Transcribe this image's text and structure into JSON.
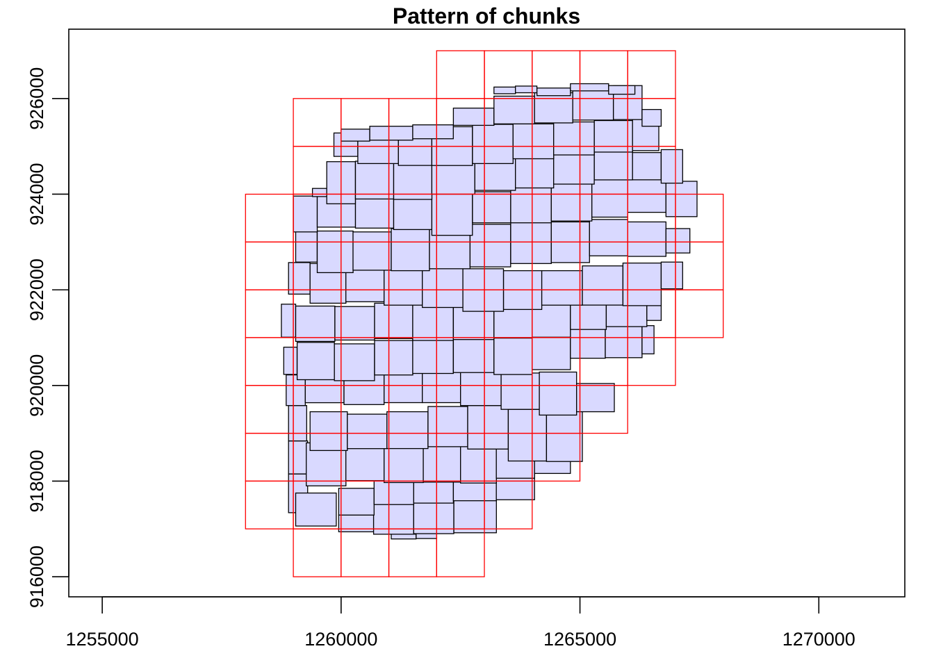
{
  "chart_data": {
    "type": "rect-overlay",
    "title": "Pattern of chunks",
    "xlabel": "",
    "ylabel": "",
    "xlim": [
      1254300,
      1271800
    ],
    "ylim": [
      915580,
      927450
    ],
    "x_ticks": [
      1255000,
      1260000,
      1265000,
      1270000
    ],
    "y_ticks": [
      916000,
      918000,
      920000,
      922000,
      924000,
      926000
    ],
    "grid": false,
    "series": [
      {
        "kind": "tiles",
        "fill": "#d9d9ff",
        "stroke": "#000000",
        "rects": [
          [
            1261050,
            1261570,
            916790,
            916890
          ],
          [
            1261570,
            1262000,
            916800,
            916910
          ],
          [
            1259950,
            1260680,
            916940,
            917290
          ],
          [
            1260680,
            1261520,
            916890,
            917520
          ],
          [
            1261520,
            1262360,
            916900,
            917550
          ],
          [
            1262360,
            1263250,
            916920,
            917610
          ],
          [
            1258900,
            1259300,
            917340,
            918150
          ],
          [
            1259050,
            1259900,
            917060,
            917750
          ],
          [
            1259950,
            1260690,
            917290,
            917850
          ],
          [
            1260690,
            1261520,
            917510,
            918200
          ],
          [
            1261520,
            1262350,
            917540,
            918280
          ],
          [
            1262350,
            1263250,
            917590,
            918470
          ],
          [
            1263250,
            1264050,
            917610,
            918320
          ],
          [
            1258900,
            1259300,
            918150,
            918840
          ],
          [
            1259270,
            1260100,
            917900,
            918800
          ],
          [
            1260100,
            1260900,
            918010,
            918800
          ],
          [
            1260900,
            1261720,
            917970,
            918780
          ],
          [
            1261720,
            1262500,
            917980,
            918790
          ],
          [
            1262500,
            1263250,
            917960,
            918830
          ],
          [
            1263250,
            1264050,
            918060,
            918920
          ],
          [
            1264050,
            1264800,
            918160,
            918850
          ],
          [
            1258900,
            1259280,
            918840,
            919580
          ],
          [
            1259350,
            1260130,
            918640,
            919450
          ],
          [
            1260130,
            1260960,
            918680,
            919400
          ],
          [
            1260960,
            1261820,
            918680,
            919450
          ],
          [
            1261820,
            1262650,
            918720,
            919560
          ],
          [
            1262650,
            1263500,
            918670,
            919580
          ],
          [
            1263500,
            1264300,
            918420,
            919500
          ],
          [
            1264300,
            1265050,
            918410,
            919550
          ],
          [
            1258850,
            1259250,
            919580,
            920220
          ],
          [
            1259250,
            1260060,
            919640,
            920420
          ],
          [
            1260060,
            1260900,
            919600,
            920370
          ],
          [
            1260900,
            1261700,
            919640,
            920490
          ],
          [
            1261700,
            1262500,
            919640,
            920400
          ],
          [
            1262500,
            1263350,
            919580,
            920320
          ],
          [
            1263350,
            1264150,
            919500,
            920260
          ],
          [
            1264150,
            1264930,
            919380,
            920280
          ],
          [
            1264930,
            1265720,
            919450,
            920040
          ],
          [
            1258800,
            1259080,
            920230,
            920800
          ],
          [
            1259080,
            1259860,
            920120,
            920900
          ],
          [
            1259860,
            1260700,
            920100,
            920870
          ],
          [
            1260700,
            1261500,
            920220,
            920940
          ],
          [
            1261500,
            1262350,
            920250,
            920980
          ],
          [
            1262350,
            1263200,
            920270,
            921050
          ],
          [
            1263200,
            1264000,
            920230,
            921030
          ],
          [
            1264000,
            1264800,
            920330,
            921060
          ],
          [
            1264800,
            1265530,
            920570,
            921180
          ],
          [
            1265530,
            1266300,
            920580,
            921330
          ],
          [
            1266300,
            1266550,
            920660,
            921250
          ],
          [
            1258750,
            1259050,
            921010,
            921700
          ],
          [
            1259050,
            1259870,
            920920,
            921660
          ],
          [
            1259870,
            1260700,
            920950,
            921650
          ],
          [
            1260700,
            1261500,
            920980,
            921720
          ],
          [
            1261500,
            1262350,
            920940,
            921850
          ],
          [
            1262350,
            1263200,
            920960,
            921950
          ],
          [
            1263200,
            1264000,
            920990,
            922060
          ],
          [
            1264000,
            1264800,
            921010,
            922050
          ],
          [
            1264800,
            1265550,
            921170,
            922110
          ],
          [
            1265550,
            1266400,
            921230,
            922260
          ],
          [
            1266400,
            1266700,
            921360,
            921890
          ],
          [
            1258900,
            1259350,
            921910,
            922570
          ],
          [
            1259350,
            1260100,
            921720,
            922550
          ],
          [
            1260100,
            1260900,
            921750,
            922520
          ],
          [
            1260900,
            1261700,
            921680,
            922560
          ],
          [
            1261700,
            1262550,
            921630,
            922450
          ],
          [
            1262550,
            1263400,
            921550,
            922440
          ],
          [
            1263400,
            1264200,
            921590,
            922400
          ],
          [
            1264200,
            1265050,
            921680,
            922400
          ],
          [
            1265050,
            1265900,
            921680,
            922500
          ],
          [
            1265900,
            1266700,
            921670,
            922560
          ],
          [
            1266700,
            1267150,
            922020,
            922580
          ],
          [
            1259050,
            1259500,
            922580,
            923230
          ],
          [
            1259500,
            1260250,
            922360,
            923230
          ],
          [
            1260250,
            1261050,
            922410,
            923210
          ],
          [
            1261050,
            1261850,
            922400,
            923280
          ],
          [
            1261850,
            1262700,
            922440,
            923300
          ],
          [
            1262700,
            1263550,
            922480,
            923370
          ],
          [
            1263550,
            1264400,
            922550,
            923430
          ],
          [
            1264400,
            1265200,
            922570,
            923420
          ],
          [
            1265200,
            1266000,
            922710,
            923470
          ],
          [
            1266000,
            1266800,
            922700,
            923420
          ],
          [
            1266800,
            1267300,
            922770,
            923280
          ],
          [
            1259000,
            1259500,
            923210,
            923960
          ],
          [
            1259500,
            1260300,
            923310,
            923960
          ],
          [
            1260300,
            1261100,
            923290,
            923970
          ],
          [
            1261100,
            1261900,
            923260,
            924050
          ],
          [
            1261900,
            1262750,
            923140,
            924010
          ],
          [
            1262750,
            1263550,
            923400,
            924050
          ],
          [
            1263550,
            1264400,
            923400,
            924140
          ],
          [
            1264400,
            1265250,
            923440,
            924250
          ],
          [
            1265250,
            1266000,
            923520,
            924300
          ],
          [
            1266000,
            1266800,
            923620,
            924350
          ],
          [
            1266800,
            1267450,
            923530,
            924270
          ],
          [
            1259400,
            1259700,
            923950,
            924120
          ],
          [
            1259700,
            1260300,
            923800,
            924680
          ],
          [
            1260300,
            1261100,
            923900,
            924690
          ],
          [
            1261100,
            1261900,
            923890,
            924650
          ],
          [
            1261900,
            1262800,
            924000,
            924800
          ],
          [
            1262800,
            1263650,
            924080,
            924780
          ],
          [
            1263650,
            1264450,
            924130,
            924830
          ],
          [
            1264450,
            1265300,
            924210,
            924900
          ],
          [
            1265300,
            1266100,
            924300,
            924940
          ],
          [
            1266100,
            1266700,
            924300,
            924870
          ],
          [
            1266700,
            1267150,
            924230,
            924930
          ],
          [
            1259850,
            1260350,
            924790,
            925280
          ],
          [
            1260350,
            1261200,
            924640,
            925290
          ],
          [
            1261200,
            1261900,
            924600,
            925350
          ],
          [
            1261900,
            1262750,
            924600,
            925410
          ],
          [
            1262750,
            1263600,
            924640,
            925460
          ],
          [
            1263600,
            1264450,
            924740,
            925470
          ],
          [
            1264450,
            1265300,
            924820,
            925510
          ],
          [
            1265300,
            1266100,
            924880,
            925540
          ],
          [
            1266100,
            1266650,
            924910,
            925590
          ],
          [
            1260000,
            1260600,
            925110,
            925360
          ],
          [
            1260600,
            1261500,
            925130,
            925420
          ],
          [
            1261500,
            1262350,
            925160,
            925450
          ],
          [
            1262350,
            1263200,
            925440,
            925800
          ],
          [
            1263200,
            1264050,
            925470,
            926050
          ],
          [
            1264050,
            1264850,
            925490,
            926120
          ],
          [
            1264850,
            1265700,
            925550,
            926220
          ],
          [
            1265700,
            1266300,
            925560,
            926270
          ],
          [
            1266300,
            1266700,
            925420,
            925770
          ],
          [
            1263200,
            1263650,
            926100,
            926240
          ],
          [
            1263650,
            1264100,
            926120,
            926260
          ],
          [
            1264100,
            1264800,
            926060,
            926220
          ],
          [
            1264800,
            1265600,
            926160,
            926310
          ],
          [
            1265600,
            1266150,
            926090,
            926270
          ]
        ]
      },
      {
        "kind": "grid-chunks",
        "fill": "none",
        "stroke": "#ff0000",
        "rects": [
          [
            1259000,
            1263000,
            916000,
            917000
          ],
          [
            1258000,
            1264000,
            917000,
            918000
          ],
          [
            1258000,
            1265000,
            918000,
            919000
          ],
          [
            1258000,
            1266000,
            919000,
            920000
          ],
          [
            1258000,
            1267000,
            920000,
            921000
          ],
          [
            1258000,
            1268000,
            921000,
            924000
          ],
          [
            1259000,
            1267000,
            924000,
            926000
          ],
          [
            1262000,
            1267000,
            926000,
            927000
          ]
        ]
      }
    ]
  }
}
